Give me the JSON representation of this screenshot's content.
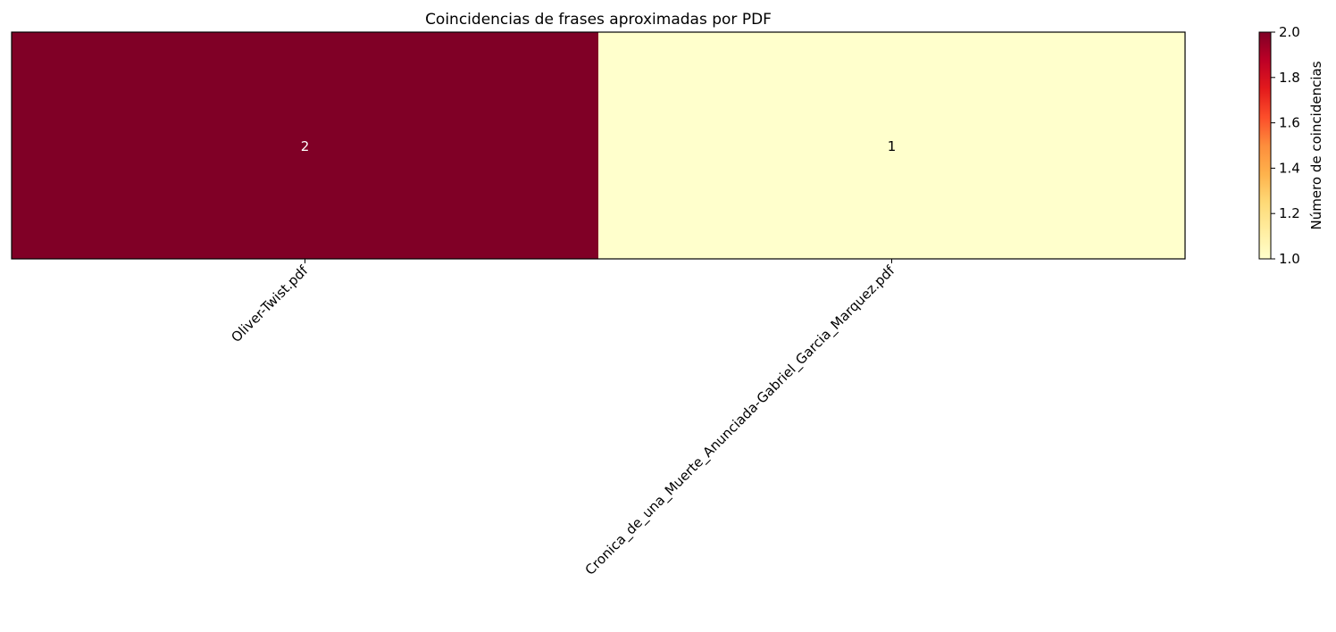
{
  "chart_data": {
    "type": "heatmap",
    "title": "Coincidencias de frases aproximadas por PDF",
    "categories": [
      "Oliver-Twist.pdf",
      "Cronica_de_una_Muerte_Anunciada-Gabriel_Garcia_Marquez.pdf"
    ],
    "values": [
      [
        2,
        1
      ]
    ],
    "colormap": "YlOrRd",
    "cell_colors": [
      "#800026",
      "#ffffcc"
    ],
    "annotations": [
      "2",
      "1"
    ],
    "annotation_colors": [
      "#ffffff",
      "#000000"
    ],
    "colorbar": {
      "label": "Número de coincidencias",
      "range": [
        1.0,
        2.0
      ],
      "ticks": [
        "1.0",
        "1.2",
        "1.4",
        "1.6",
        "1.8",
        "2.0"
      ],
      "gradient": [
        "#ffffcc",
        "#ffeda0",
        "#fed976",
        "#feb24c",
        "#fd8d3c",
        "#fc4e2a",
        "#e31a1c",
        "#bd0026",
        "#800026"
      ]
    },
    "xtick_rotation": "45 degrees",
    "grid": false,
    "legend": "colorbar on right"
  }
}
